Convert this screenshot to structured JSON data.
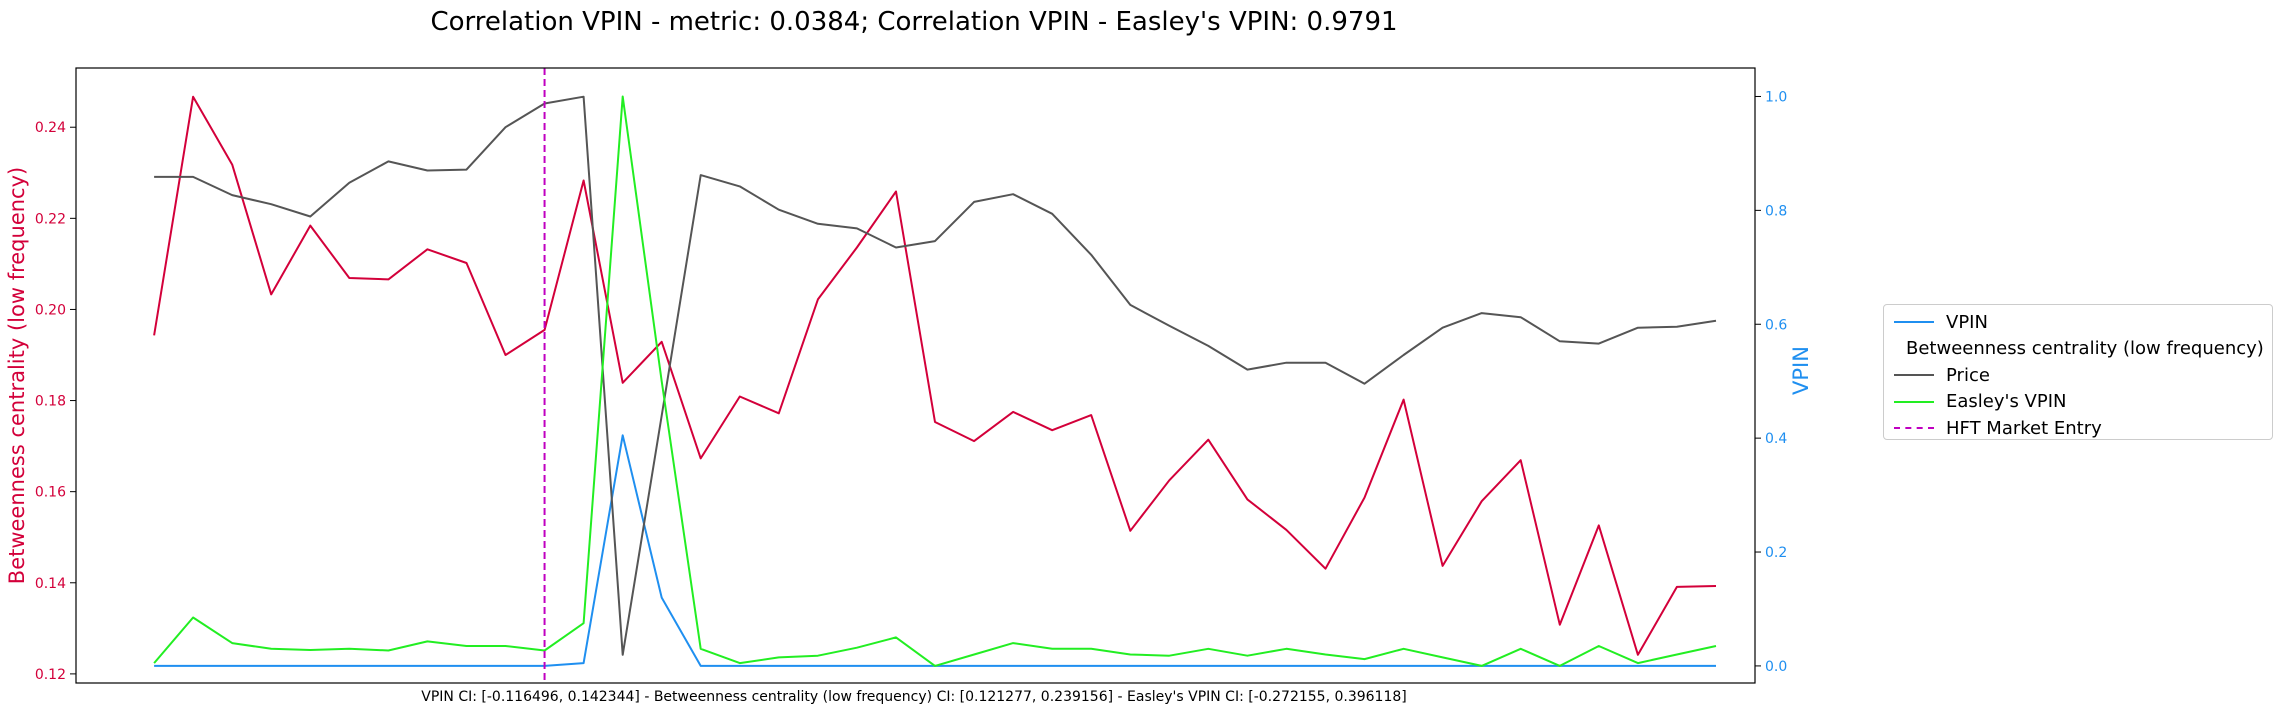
{
  "chart_data": {
    "type": "line",
    "title": "Correlation VPIN - metric: 0.0384; Correlation VPIN - Easley's VPIN: 0.9791",
    "xlabel": "VPIN CI: [-0.116496, 0.142344] - Betweenness centrality (low frequency) CI: [0.121277, 0.239156] - Easley's VPIN CI: [-0.272155, 0.396118]",
    "ylabel_left": "Betweenness centrality (low frequency)",
    "ylabel_right": "VPIN",
    "ylim_left": [
      0.118,
      0.253
    ],
    "ylim_right": [
      -0.03,
      1.05
    ],
    "xlim": [
      -2,
      41
    ],
    "left_ticks": [
      0.12,
      0.14,
      0.16,
      0.18,
      0.2,
      0.22,
      0.24
    ],
    "right_ticks": [
      0.0,
      0.2,
      0.4,
      0.6,
      0.8,
      1.0
    ],
    "grid": false,
    "legend_position": "right, outside plot",
    "hft_market_entry_x": 10,
    "series": [
      {
        "name": "VPIN",
        "axis": "right",
        "color": "#1f8ff0",
        "dash": "solid",
        "values": [
          0,
          0,
          0,
          0,
          0,
          0,
          0,
          0,
          0,
          0,
          0,
          0.005,
          0.405,
          0.12,
          0,
          0,
          0,
          0,
          0,
          0,
          0,
          0,
          0,
          0,
          0,
          0,
          0,
          0,
          0,
          0,
          0,
          0,
          0,
          0,
          0,
          0,
          0,
          0,
          0,
          0,
          0
        ]
      },
      {
        "name": "Betweenness centrality (low frequency)",
        "axis": "left",
        "color": "#d3003a",
        "dash": "solid",
        "values": [
          0.1943,
          0.2467,
          0.2318,
          0.2033,
          0.2184,
          0.2069,
          0.2066,
          0.2132,
          0.2102,
          0.19,
          0.1955,
          0.2283,
          0.1839,
          0.1929,
          0.1673,
          0.1809,
          0.1772,
          0.2022,
          0.2136,
          0.2259,
          0.1753,
          0.1711,
          0.1775,
          0.1735,
          0.1768,
          0.1514,
          0.1625,
          0.1714,
          0.1583,
          0.1516,
          0.1431,
          0.1587,
          0.1802,
          0.1437,
          0.1579,
          0.1669,
          0.1308,
          0.1526,
          0.1242,
          0.1391,
          0.1393
        ]
      },
      {
        "name": "Price",
        "axis": "left",
        "color": "#555555",
        "dash": "solid",
        "values": [
          0.2291,
          0.2291,
          0.2251,
          0.2231,
          0.2204,
          0.2278,
          0.2325,
          0.2305,
          0.2307,
          0.24,
          0.2452,
          0.2467,
          0.1242,
          0.1767,
          0.2295,
          0.227,
          0.2219,
          0.2188,
          0.2178,
          0.2136,
          0.215,
          0.2236,
          0.2253,
          0.221,
          0.212,
          0.201,
          0.1964,
          0.192,
          0.1868,
          0.1883,
          0.1883,
          0.1837,
          0.19,
          0.196,
          0.1992,
          0.1983,
          0.193,
          0.1925,
          0.196,
          0.1962,
          0.1975
        ]
      },
      {
        "name": "Easley's VPIN",
        "axis": "right",
        "color": "#22ee22",
        "dash": "solid",
        "values": [
          0.005,
          0.085,
          0.04,
          0.03,
          0.028,
          0.03,
          0.027,
          0.043,
          0.035,
          0.035,
          0.027,
          0.075,
          1.0,
          0.5,
          0.03,
          0.005,
          0.015,
          0.018,
          0.032,
          0.05,
          0,
          0.02,
          0.04,
          0.03,
          0.03,
          0.02,
          0.018,
          0.03,
          0.018,
          0.03,
          0.02,
          0.012,
          0.03,
          0.015,
          0,
          0.03,
          0,
          0.035,
          0.005,
          0.02,
          0.035
        ]
      }
    ],
    "vline": {
      "name": "HFT Market Entry",
      "color": "#c000c0",
      "dash": "dashed"
    }
  }
}
